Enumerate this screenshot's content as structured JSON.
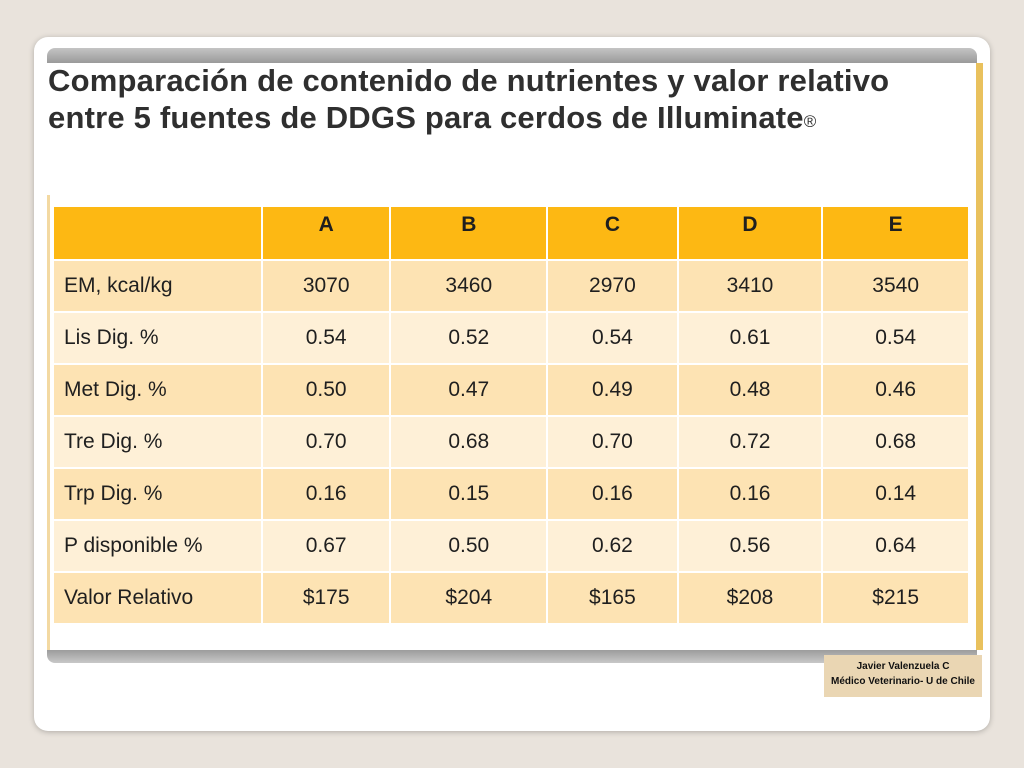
{
  "slide": {
    "title": "Comparación de contenido de nutrientes y valor relativo entre 5 fuentes de DDGS para cerdos de Illuminate",
    "title_mark": "®"
  },
  "table": {
    "columns": [
      "",
      "A",
      "B",
      "C",
      "D",
      "E"
    ],
    "rows": [
      {
        "label": "EM, kcal/kg",
        "values": [
          "3070",
          "3460",
          "2970",
          "3410",
          "3540"
        ]
      },
      {
        "label": "Lis Dig.  %",
        "values": [
          "0.54",
          "0.52",
          "0.54",
          "0.61",
          "0.54"
        ]
      },
      {
        "label": "Met Dig. %",
        "values": [
          "0.50",
          "0.47",
          "0.49",
          "0.48",
          "0.46"
        ]
      },
      {
        "label": "Tre Dig. %",
        "values": [
          "0.70",
          "0.68",
          "0.70",
          "0.72",
          "0.68"
        ]
      },
      {
        "label": "Trp Dig. %",
        "values": [
          "0.16",
          "0.15",
          "0.16",
          "0.16",
          "0.14"
        ]
      },
      {
        "label": "P disponible %",
        "values": [
          "0.67",
          "0.50",
          "0.62",
          "0.56",
          "0.64"
        ]
      },
      {
        "label": "Valor Relativo",
        "values": [
          "$175",
          "$204",
          "$165",
          "$208",
          "$215"
        ]
      }
    ],
    "colors": {
      "header": "#fdb813",
      "row_dark": "#fde3b3",
      "row_light": "#fef0d7"
    }
  },
  "footer": {
    "author_name": "Javier Valenzuela C",
    "author_role": "Médico Veterinario- U de Chile"
  }
}
